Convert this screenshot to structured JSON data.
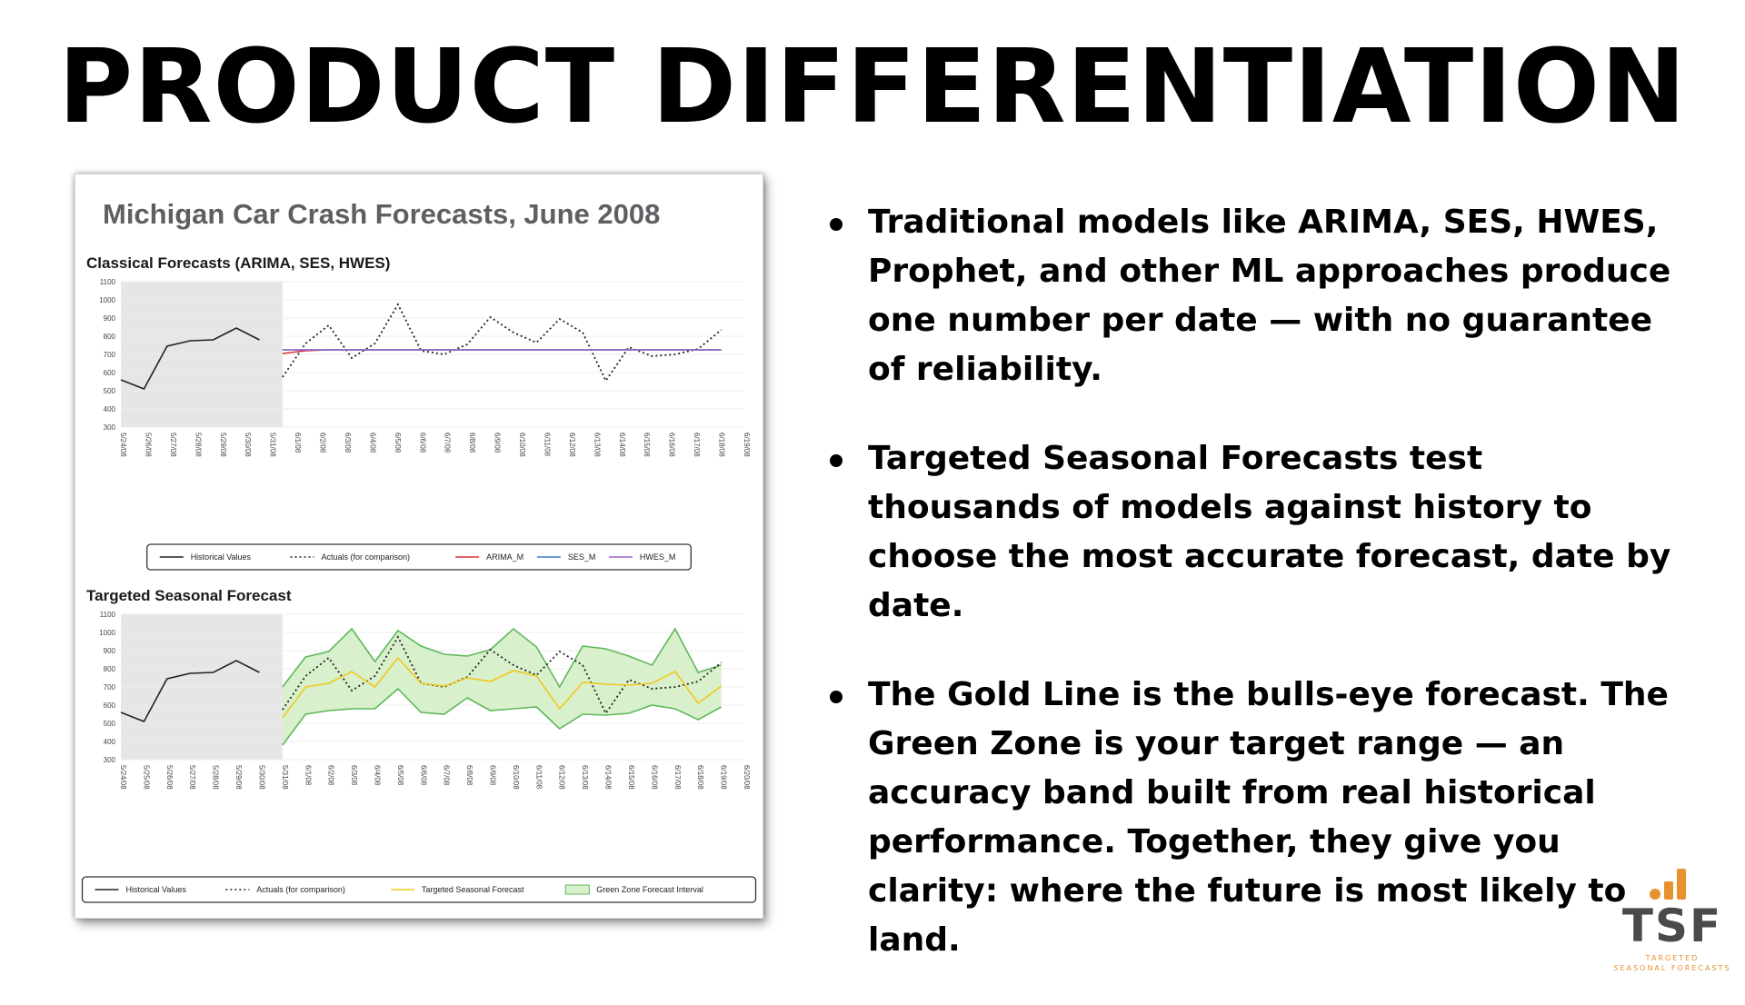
{
  "slide": {
    "title": "PRODUCT DIFFERENTIATION",
    "panel_title": "Michigan Car Crash Forecasts, June 2008",
    "bullets": [
      "Traditional models like ARIMA, SES, HWES, Prophet, and other ML approaches produce one number per date — with no guarantee of reliability.",
      "Targeted Seasonal Forecasts test thousands of models against history to choose the most accurate forecast, date by date.",
      "The Gold Line is the bulls-eye forecast. The Green Zone is your target range — an accuracy band built from real historical performance. Together, they give you clarity: where the future is most likely to land."
    ],
    "logo": {
      "text": "TSF",
      "sub1": "TARGETED",
      "sub2": "SEASONAL FORECASTS",
      "bar_color": "#e8912f",
      "text_color": "#4a4a4a"
    }
  },
  "chart_data": [
    {
      "type": "line",
      "title": "Classical Forecasts (ARIMA, SES, HWES)",
      "x": [
        "5/24/08",
        "5/25/08",
        "5/26/08",
        "5/27/08",
        "5/28/08",
        "5/29/08",
        "5/30/08",
        "5/31/08",
        "6/1/08",
        "6/2/08",
        "6/3/08",
        "6/4/08",
        "6/5/08",
        "6/6/08",
        "6/7/08",
        "6/8/08",
        "6/9/08",
        "6/10/08",
        "6/11/08",
        "6/12/08",
        "6/13/08",
        "6/14/08",
        "6/15/08",
        "6/16/08",
        "6/17/08",
        "6/18/08",
        "6/19/08",
        "6/20/08"
      ],
      "x_tick_labels": [
        "5/24/08",
        "5/26/08",
        "5/27/08",
        "5/28/08",
        "5/29/08",
        "5/30/08",
        "5/31/08",
        "6/1/08",
        "6/2/08",
        "6/3/08",
        "6/4/08",
        "6/5/08",
        "6/6/08",
        "6/7/08",
        "6/8/08",
        "6/9/08",
        "6/10/08",
        "6/11/08",
        "6/12/08",
        "6/13/08",
        "6/14/08",
        "6/15/08",
        "6/16/08",
        "6/17/08",
        "6/18/08",
        "6/19/08"
      ],
      "ylim": [
        300,
        1100
      ],
      "yticks": [
        300,
        400,
        500,
        600,
        700,
        800,
        900,
        1000,
        1100
      ],
      "shaded_region": [
        "5/24/08",
        "5/31/08"
      ],
      "series": [
        {
          "name": "Historical Values",
          "color": "#222222",
          "style": "solid",
          "values": [
            560,
            510,
            745,
            775,
            780,
            845,
            780,
            null,
            null,
            null,
            null,
            null,
            null,
            null,
            null,
            null,
            null,
            null,
            null,
            null,
            null,
            null,
            null,
            null,
            null,
            null,
            null,
            null
          ]
        },
        {
          "name": "Actuals (for comparison)",
          "color": "#222222",
          "style": "dotted",
          "values": [
            null,
            null,
            null,
            null,
            null,
            null,
            null,
            575,
            760,
            860,
            680,
            760,
            975,
            720,
            700,
            755,
            905,
            820,
            765,
            895,
            820,
            555,
            740,
            690,
            700,
            730,
            835,
            null
          ]
        },
        {
          "name": "ARIMA_M",
          "color": "#d9323c",
          "style": "solid",
          "values": [
            null,
            null,
            null,
            null,
            null,
            null,
            null,
            705,
            720,
            725,
            725,
            725,
            725,
            725,
            725,
            725,
            725,
            725,
            725,
            725,
            725,
            725,
            725,
            725,
            725,
            725,
            725,
            null
          ]
        },
        {
          "name": "SES_M",
          "color": "#3b78c4",
          "style": "solid",
          "values": [
            null,
            null,
            null,
            null,
            null,
            null,
            null,
            725,
            725,
            725,
            725,
            725,
            725,
            725,
            725,
            725,
            725,
            725,
            725,
            725,
            725,
            725,
            725,
            725,
            725,
            725,
            725,
            null
          ]
        },
        {
          "name": "HWES_M",
          "color": "#9a64c8",
          "style": "solid",
          "values": [
            null,
            null,
            null,
            null,
            null,
            null,
            null,
            725,
            725,
            725,
            725,
            725,
            725,
            725,
            725,
            725,
            725,
            725,
            725,
            725,
            725,
            725,
            725,
            725,
            725,
            725,
            725,
            null
          ]
        }
      ],
      "legend": [
        "Historical Values",
        "Actuals (for comparison)",
        "ARIMA_M",
        "SES_M",
        "HWES_M"
      ],
      "legend_placement": "bottom",
      "grid": true
    },
    {
      "type": "line",
      "title": "Targeted Seasonal Forecast",
      "x": [
        "5/24/08",
        "5/25/08",
        "5/26/08",
        "5/27/08",
        "5/28/08",
        "5/29/08",
        "5/30/08",
        "5/31/08",
        "6/1/08",
        "6/2/08",
        "6/3/08",
        "6/4/08",
        "6/5/08",
        "6/6/08",
        "6/7/08",
        "6/8/08",
        "6/9/08",
        "6/10/08",
        "6/11/08",
        "6/12/08",
        "6/13/08",
        "6/14/08",
        "6/15/08",
        "6/16/08",
        "6/17/08",
        "6/18/08",
        "6/19/08",
        "6/20/08"
      ],
      "x_tick_labels": [
        "5/24/08",
        "5/25/08",
        "5/26/08",
        "5/27/08",
        "5/28/08",
        "5/29/08",
        "5/30/08",
        "5/31/08",
        "6/1/08",
        "6/2/08",
        "6/3/08",
        "6/4/08",
        "6/5/08",
        "6/6/08",
        "6/7/08",
        "6/8/08",
        "6/9/08",
        "6/10/08",
        "6/11/08",
        "6/12/08",
        "6/13/08",
        "6/14/08",
        "6/15/08",
        "6/16/08",
        "6/17/08",
        "6/18/08",
        "6/19/08",
        "6/20/08"
      ],
      "ylim": [
        300,
        1100
      ],
      "yticks": [
        300,
        400,
        500,
        600,
        700,
        800,
        900,
        1000,
        1100
      ],
      "shaded_region": [
        "5/24/08",
        "5/31/08"
      ],
      "series": [
        {
          "name": "Historical Values",
          "color": "#222222",
          "style": "solid",
          "values": [
            560,
            510,
            745,
            775,
            780,
            845,
            780,
            null,
            null,
            null,
            null,
            null,
            null,
            null,
            null,
            null,
            null,
            null,
            null,
            null,
            null,
            null,
            null,
            null,
            null,
            null,
            null,
            null
          ]
        },
        {
          "name": "Actuals (for comparison)",
          "color": "#222222",
          "style": "dotted",
          "values": [
            null,
            null,
            null,
            null,
            null,
            null,
            null,
            575,
            760,
            860,
            680,
            760,
            975,
            720,
            700,
            755,
            905,
            820,
            765,
            895,
            820,
            555,
            740,
            690,
            700,
            730,
            835,
            null
          ]
        },
        {
          "name": "Targeted Seasonal Forecast",
          "color": "#f2c81e",
          "style": "solid",
          "values": [
            null,
            null,
            null,
            null,
            null,
            null,
            null,
            530,
            700,
            720,
            785,
            700,
            860,
            720,
            705,
            750,
            730,
            790,
            760,
            580,
            725,
            715,
            710,
            720,
            785,
            610,
            705,
            null
          ]
        }
      ],
      "band": {
        "name": "Green Zone Forecast Interval",
        "fill": "#d8f0cc",
        "stroke": "#5fb85a",
        "upper": [
          null,
          null,
          null,
          null,
          null,
          null,
          null,
          700,
          865,
          895,
          1020,
          840,
          1010,
          925,
          880,
          870,
          905,
          1020,
          920,
          700,
          925,
          910,
          870,
          820,
          1020,
          780,
          820,
          null
        ],
        "lower": [
          null,
          null,
          null,
          null,
          null,
          null,
          null,
          380,
          550,
          570,
          580,
          580,
          690,
          560,
          550,
          640,
          570,
          580,
          590,
          470,
          550,
          545,
          555,
          600,
          580,
          520,
          590,
          null
        ]
      },
      "legend": [
        "Historical Values",
        "Actuals (for comparison)",
        "Targeted Seasonal Forecast",
        "Green Zone Forecast Interval"
      ],
      "legend_placement": "bottom",
      "grid": true
    }
  ]
}
